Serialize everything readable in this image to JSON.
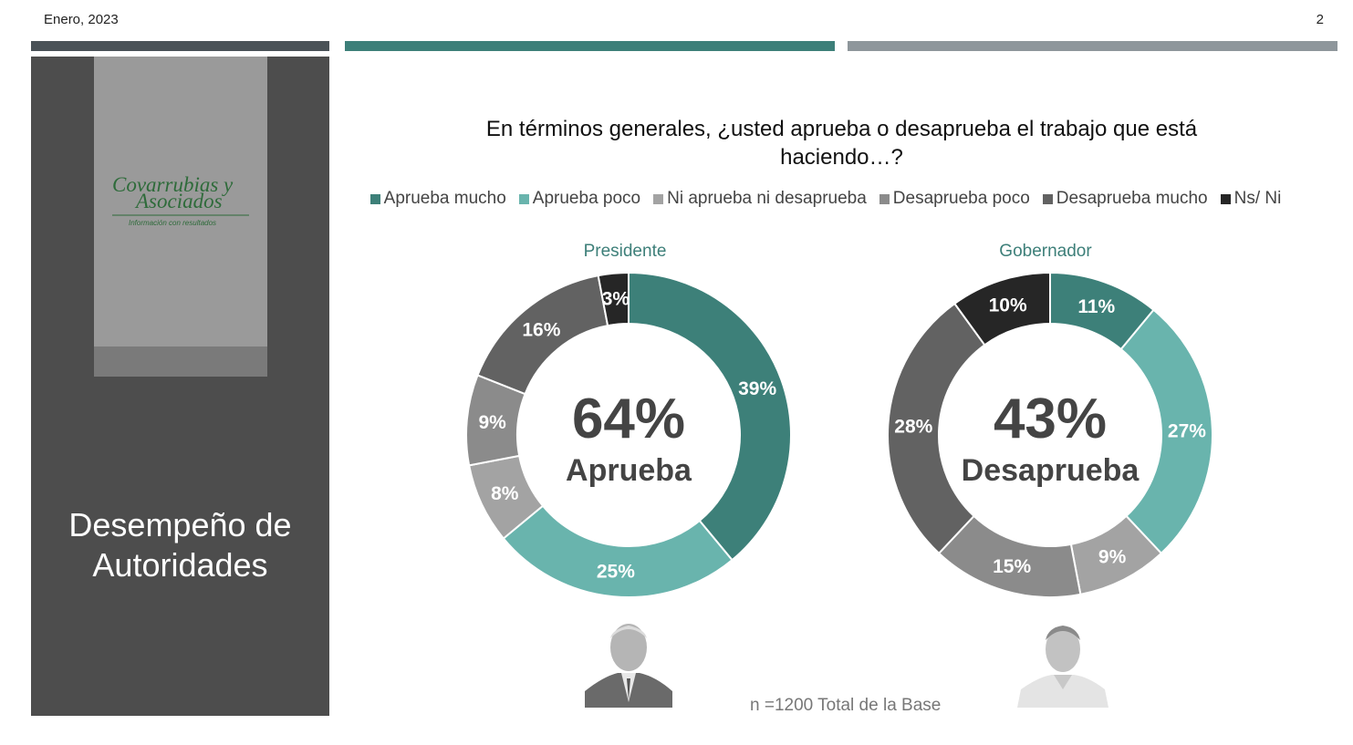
{
  "header": {
    "date": "Enero, 2023",
    "page": "2"
  },
  "sidebar": {
    "logo": {
      "line1": "Covarrubias y",
      "line2": "Asociados",
      "tagline": "Información con resultados"
    },
    "title_line1": "Desempeño de",
    "title_line2": "Autoridades"
  },
  "question": "En términos generales, ¿usted aprueba o desaprueba el trabajo que está haciendo…?",
  "legend": [
    {
      "label": "Aprueba mucho",
      "color": "#3d8079"
    },
    {
      "label": "Aprueba poco",
      "color": "#69b4ad"
    },
    {
      "label": "Ni aprueba ni desaprueba",
      "color": "#a3a3a3"
    },
    {
      "label": "Desaprueba poco",
      "color": "#8b8b8b"
    },
    {
      "label": "Desaprueba mucho",
      "color": "#626262"
    },
    {
      "label": "Ns/ Ni",
      "color": "#262626"
    }
  ],
  "chart_data": [
    {
      "type": "pie",
      "donut": true,
      "title": "Presidente",
      "center_value": "64%",
      "center_label": "Aprueba",
      "categories": [
        "Aprueba mucho",
        "Aprueba poco",
        "Ni aprueba ni desaprueba",
        "Desaprueba poco",
        "Desaprueba mucho",
        "Ns/ Ni"
      ],
      "values": [
        39,
        25,
        8,
        9,
        16,
        3
      ],
      "labels": [
        "39%",
        "25%",
        "8%",
        "9%",
        "16%",
        "3%"
      ]
    },
    {
      "type": "pie",
      "donut": true,
      "title": "Gobernador",
      "center_value": "43%",
      "center_label": "Desaprueba",
      "categories": [
        "Aprueba mucho",
        "Aprueba poco",
        "Ni aprueba ni desaprueba",
        "Desaprueba poco",
        "Desaprueba mucho",
        "Ns/ Ni"
      ],
      "values": [
        11,
        27,
        9,
        15,
        28,
        10
      ],
      "labels": [
        "11%",
        "27%",
        "9%",
        "15%",
        "28%",
        "10%"
      ]
    }
  ],
  "footnote": "n =1200 Total de la Base"
}
